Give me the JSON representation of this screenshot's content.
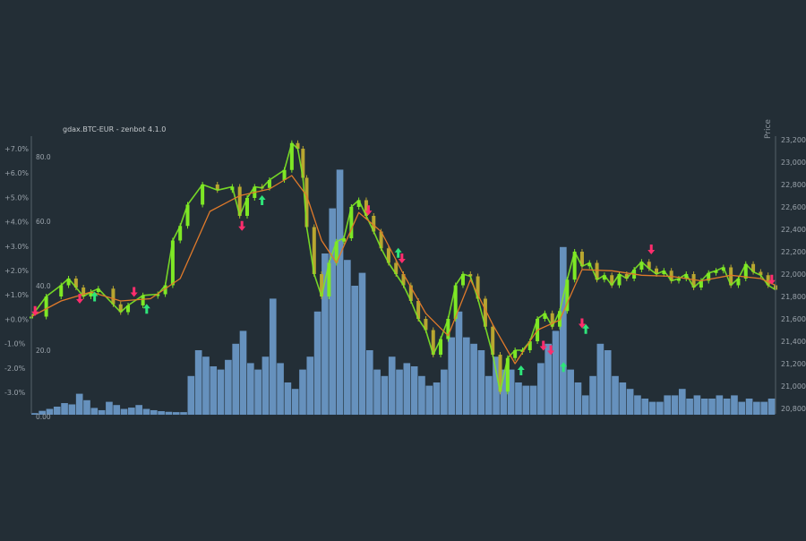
{
  "chart_data": {
    "type": "line",
    "title": "gdax.BTC-EUR - zenbot 4.1.0",
    "colors": {
      "background": "#232e36",
      "text": "#9aa3ab",
      "candle_up": "#7ee825",
      "candle_down": "#b8a630",
      "trend_line": "#e07a2a",
      "volume": "#6f9fd0",
      "buy_marker": "#2fe57a",
      "sell_marker": "#ff2d6d"
    },
    "x_range": [
      0,
      100
    ],
    "left_axis": {
      "ticks": [
        "+7.0%",
        "+6.0%",
        "+5.0%",
        "+4.0%",
        "+3.0%",
        "+2.0%",
        "+1.0%",
        "+0.0%",
        "-1.0%",
        "-2.0%",
        "-3.0%"
      ],
      "values": [
        7,
        6,
        5,
        4,
        3,
        2,
        1,
        0,
        -1,
        -2,
        -3
      ]
    },
    "volume_axis": {
      "ticks": [
        "80.0",
        "60.0",
        "40.0",
        "20.0",
        "0.00"
      ],
      "values": [
        80,
        60,
        40,
        20,
        0
      ]
    },
    "right_axis": {
      "label": "Price",
      "ticks": [
        "23,200",
        "23,000",
        "22,800",
        "22,600",
        "22,400",
        "22,200",
        "22,000",
        "21,800",
        "21,600",
        "21,400",
        "21,200",
        "21,000",
        "20,800"
      ],
      "values": [
        23200,
        23000,
        22800,
        22600,
        22400,
        22200,
        22000,
        21800,
        21600,
        21400,
        21200,
        21000,
        20800
      ],
      "ylim": [
        20800,
        23200
      ]
    },
    "price_series": {
      "name": "price",
      "x": [
        0,
        2,
        4,
        5,
        6,
        7,
        8,
        9,
        11,
        12,
        13,
        15,
        17,
        18,
        19,
        20,
        21,
        23,
        25,
        27,
        28,
        29,
        30,
        31,
        32,
        34,
        35,
        35.8,
        36.5,
        37,
        38,
        39,
        40,
        41,
        42,
        43,
        44,
        45,
        46,
        47,
        48,
        49,
        50,
        51,
        52,
        53,
        54,
        55,
        56,
        57,
        58,
        59,
        60,
        61,
        62,
        63,
        64,
        65,
        66,
        67,
        68,
        69,
        70,
        71,
        72,
        73,
        74,
        75,
        76,
        77,
        78,
        79,
        80,
        81,
        82,
        83,
        84,
        85,
        86,
        87,
        88,
        89,
        90,
        91,
        92,
        93,
        94,
        95,
        96,
        97,
        98,
        99,
        100
      ],
      "values": [
        21620,
        21800,
        21900,
        21960,
        21880,
        21800,
        21840,
        21870,
        21730,
        21660,
        21720,
        21810,
        21820,
        21900,
        22300,
        22430,
        22620,
        22800,
        22750,
        22780,
        22520,
        22680,
        22780,
        22770,
        22840,
        22930,
        23170,
        23120,
        22860,
        22420,
        22000,
        21800,
        22100,
        22290,
        22320,
        22600,
        22660,
        22520,
        22380,
        22230,
        22100,
        22000,
        21900,
        21760,
        21600,
        21500,
        21280,
        21420,
        21600,
        21900,
        22000,
        21980,
        21780,
        21530,
        21280,
        20950,
        21250,
        21320,
        21320,
        21400,
        21600,
        21650,
        21530,
        21670,
        21950,
        22200,
        22070,
        22100,
        21950,
        21990,
        21900,
        22000,
        21960,
        22040,
        22110,
        22050,
        22000,
        22030,
        21940,
        21960,
        22000,
        21880,
        21940,
        22010,
        22030,
        22060,
        21900,
        21960,
        22090,
        22020,
        21990,
        21900,
        21860
      ]
    },
    "trend_series": {
      "name": "trend",
      "x": [
        0,
        4,
        8,
        12,
        16,
        20,
        24,
        28,
        32,
        35,
        37,
        39,
        41,
        44,
        47,
        50,
        53,
        56,
        59,
        62,
        65,
        68,
        71,
        74,
        78,
        82,
        86,
        90,
        94,
        98,
        100
      ],
      "values": [
        21620,
        21760,
        21840,
        21760,
        21780,
        21960,
        22560,
        22700,
        22760,
        22880,
        22700,
        22300,
        22100,
        22550,
        22380,
        22000,
        21650,
        21450,
        21950,
        21550,
        21200,
        21500,
        21590,
        22040,
        22030,
        21990,
        21980,
        21940,
        21990,
        21960,
        21900
      ]
    },
    "volume": {
      "name": "volume",
      "ylim": [
        0,
        80
      ],
      "values": [
        0.5,
        1.2,
        1.8,
        2.5,
        3.6,
        3.2,
        6.5,
        4.5,
        2.1,
        1.4,
        4.0,
        3.0,
        1.8,
        2.2,
        3.0,
        1.8,
        1.4,
        1.1,
        0.9,
        0.8,
        0.8,
        12,
        20,
        18,
        15,
        14,
        17,
        22,
        26,
        16,
        14,
        18,
        36,
        16,
        10,
        8,
        14,
        18,
        32,
        50,
        64,
        76,
        48,
        40,
        44,
        20,
        14,
        12,
        18,
        14,
        16,
        15,
        12,
        9,
        10,
        14,
        24,
        32,
        24,
        22,
        20,
        12,
        18,
        14,
        14,
        10,
        9,
        9,
        16,
        22,
        26,
        52,
        14,
        10,
        6,
        12,
        22,
        20,
        12,
        10,
        8,
        6,
        5,
        4,
        4,
        6,
        6,
        8,
        5,
        6,
        5,
        5,
        6,
        5,
        6,
        4,
        5,
        4,
        4,
        5
      ]
    },
    "markers": [
      {
        "type": "sell",
        "x": 0.5,
        "price": 21610
      },
      {
        "type": "sell",
        "x": 6.5,
        "price": 21720
      },
      {
        "type": "buy",
        "x": 8.5,
        "price": 21860
      },
      {
        "type": "sell",
        "x": 13.8,
        "price": 21780
      },
      {
        "type": "buy",
        "x": 15.5,
        "price": 21750
      },
      {
        "type": "sell",
        "x": 28.3,
        "price": 22370
      },
      {
        "type": "buy",
        "x": 31,
        "price": 22720
      },
      {
        "type": "sell",
        "x": 45.3,
        "price": 22510
      },
      {
        "type": "buy",
        "x": 49.3,
        "price": 22250
      },
      {
        "type": "sell",
        "x": 49.8,
        "price": 22080
      },
      {
        "type": "buy",
        "x": 65.8,
        "price": 21200
      },
      {
        "type": "sell",
        "x": 68.8,
        "price": 21300
      },
      {
        "type": "sell",
        "x": 69.8,
        "price": 21260
      },
      {
        "type": "buy",
        "x": 71.5,
        "price": 21230
      },
      {
        "type": "sell",
        "x": 74,
        "price": 21500
      },
      {
        "type": "buy",
        "x": 74.5,
        "price": 21570
      },
      {
        "type": "sell",
        "x": 83.3,
        "price": 22160
      },
      {
        "type": "sell",
        "x": 99.5,
        "price": 21890
      }
    ],
    "grid": false,
    "legend": "none"
  }
}
